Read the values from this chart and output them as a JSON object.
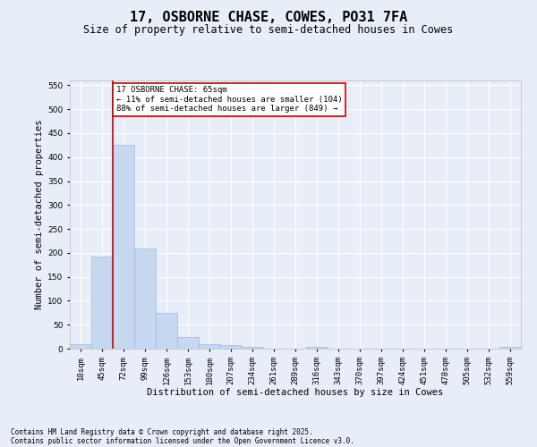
{
  "title": "17, OSBORNE CHASE, COWES, PO31 7FA",
  "subtitle": "Size of property relative to semi-detached houses in Cowes",
  "xlabel": "Distribution of semi-detached houses by size in Cowes",
  "ylabel": "Number of semi-detached properties",
  "footnote1": "Contains HM Land Registry data © Crown copyright and database right 2025.",
  "footnote2": "Contains public sector information licensed under the Open Government Licence v3.0.",
  "categories": [
    "18sqm",
    "45sqm",
    "72sqm",
    "99sqm",
    "126sqm",
    "153sqm",
    "180sqm",
    "207sqm",
    "234sqm",
    "261sqm",
    "289sqm",
    "316sqm",
    "343sqm",
    "370sqm",
    "397sqm",
    "424sqm",
    "451sqm",
    "478sqm",
    "505sqm",
    "532sqm",
    "559sqm"
  ],
  "values": [
    10,
    193,
    425,
    210,
    75,
    25,
    10,
    8,
    3,
    0,
    0,
    4,
    0,
    0,
    0,
    0,
    0,
    0,
    0,
    0,
    3
  ],
  "bar_color": "#c5d8f0",
  "bar_edgecolor": "#a0b8d8",
  "marker_color": "#cc0000",
  "annotation_text": "17 OSBORNE CHASE: 65sqm\n← 11% of semi-detached houses are smaller (104)\n88% of semi-detached houses are larger (849) →",
  "annotation_box_color": "#ffffff",
  "annotation_box_edgecolor": "#cc0000",
  "ylim": [
    0,
    560
  ],
  "yticks": [
    0,
    50,
    100,
    150,
    200,
    250,
    300,
    350,
    400,
    450,
    500,
    550
  ],
  "background_color": "#e8eef8",
  "plot_background_color": "#e8eef8",
  "grid_color": "#ffffff",
  "title_fontsize": 11,
  "subtitle_fontsize": 8.5,
  "axis_label_fontsize": 7.5,
  "tick_fontsize": 6.5,
  "annotation_fontsize": 6.5,
  "footnote_fontsize": 5.5
}
